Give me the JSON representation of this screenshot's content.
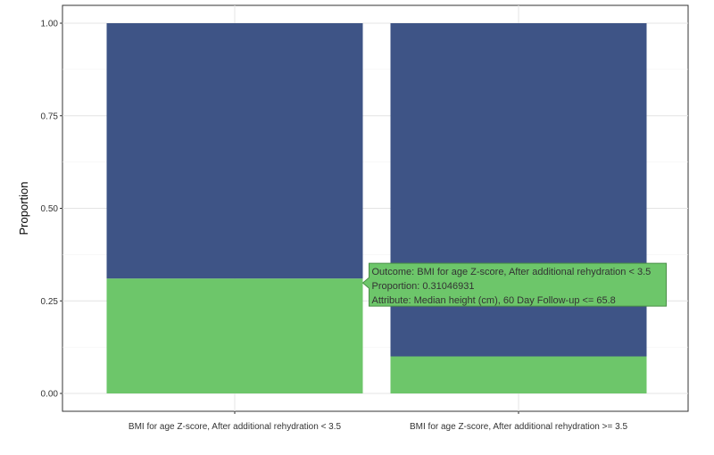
{
  "chart_data": {
    "type": "bar",
    "stacked": true,
    "ylabel": "Proportion",
    "xlabel": "",
    "ylim": [
      0,
      1
    ],
    "yticks": [
      0.0,
      0.25,
      0.5,
      0.75,
      1.0
    ],
    "ytick_labels": [
      "0.00",
      "0.25",
      "0.50",
      "0.75",
      "1.00"
    ],
    "grid": true,
    "categories": [
      "BMI for age Z-score, After additional rehydration < 3.5",
      "BMI for age Z-score, After additional rehydration >= 3.5"
    ],
    "series": [
      {
        "color": "#6dc66a",
        "values": [
          0.31046931,
          0.1
        ]
      },
      {
        "color": "#3e5486",
        "values": [
          0.68953069,
          0.9
        ]
      }
    ]
  },
  "tooltip": {
    "line1": "Outcome: BMI for age Z-score, After additional rehydration < 3.5",
    "line2": "Proportion: 0.31046931",
    "line3": "Attribute: Median height (cm), 60 Day Follow-up <= 65.8"
  }
}
